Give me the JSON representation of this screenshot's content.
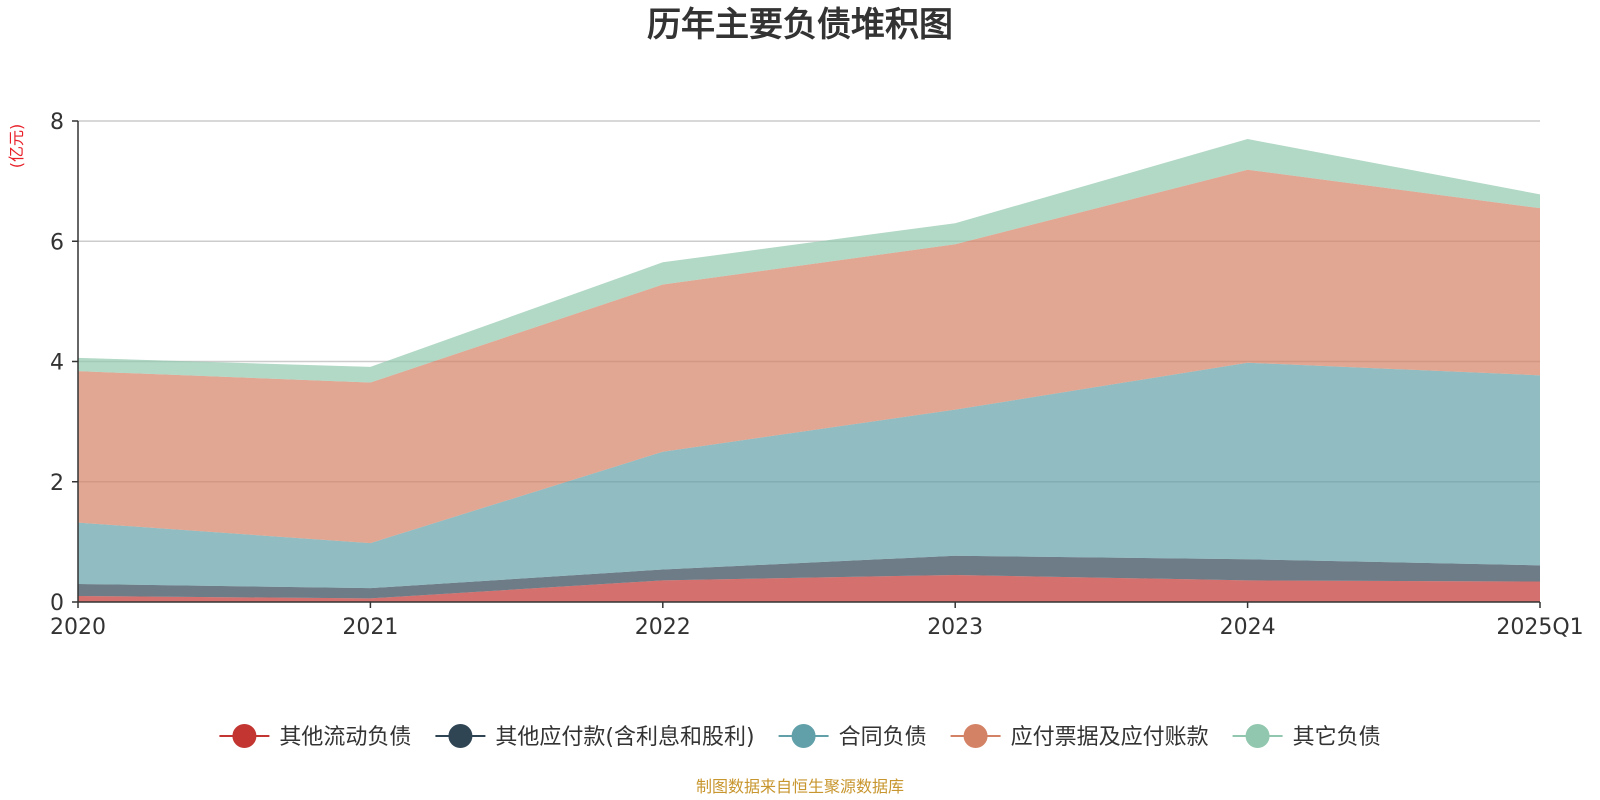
{
  "chart_data": {
    "type": "area",
    "stacked": true,
    "title": "历年主要负债堆积图",
    "ylabel": "(亿元)",
    "categories": [
      "2020",
      "2021",
      "2022",
      "2023",
      "2024",
      "2025Q1"
    ],
    "ylim": [
      0,
      8
    ],
    "yticks": [
      "0",
      "2",
      "4",
      "6",
      "8"
    ],
    "grid": true,
    "legend_position": "bottom",
    "series": [
      {
        "name": "其他流动负债",
        "color": "#c23531",
        "values": [
          0.1,
          0.06,
          0.36,
          0.45,
          0.36,
          0.34
        ]
      },
      {
        "name": "其他应付款(含利息和股利)",
        "color": "#2f4554",
        "values": [
          0.2,
          0.17,
          0.18,
          0.32,
          0.35,
          0.27
        ]
      },
      {
        "name": "合同负债",
        "color": "#61a0a8",
        "values": [
          1.02,
          0.75,
          1.96,
          2.43,
          3.27,
          3.16
        ]
      },
      {
        "name": "应付票据及应付账款",
        "color": "#d48265",
        "values": [
          2.52,
          2.67,
          2.78,
          2.75,
          3.21,
          2.78
        ]
      },
      {
        "name": "其它负债",
        "color": "#91c7ae",
        "values": [
          0.22,
          0.26,
          0.37,
          0.35,
          0.51,
          0.23
        ]
      }
    ],
    "source_note": "制图数据来自恒生聚源数据库"
  }
}
